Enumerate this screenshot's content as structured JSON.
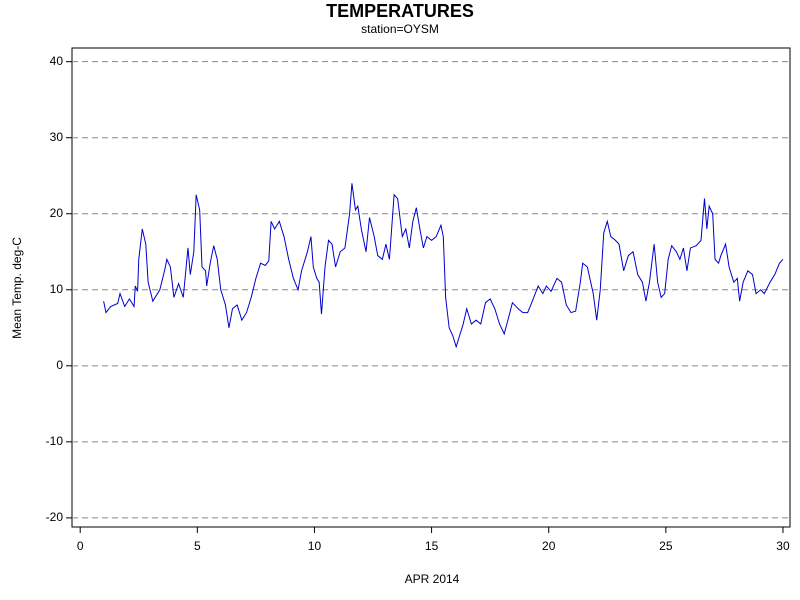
{
  "chart_data": {
    "type": "line",
    "title": "TEMPERATURES",
    "subtitle": "station=OYSM",
    "x_label": "APR 2014",
    "y_label": "Mean Temp. deg-C",
    "xlim": [
      -0.35,
      30.3
    ],
    "xticks": [
      0,
      5,
      10,
      15,
      20,
      25,
      30
    ],
    "ylim": [
      -21.2,
      41.8
    ],
    "yticks": [
      -20,
      -10,
      0,
      10,
      20,
      30,
      40
    ],
    "ygrid": true,
    "x": [
      1.0,
      1.1,
      1.3,
      1.6,
      1.7,
      1.9,
      2.1,
      2.3,
      2.35,
      2.45,
      2.5,
      2.65,
      2.8,
      2.9,
      3.1,
      3.4,
      3.6,
      3.7,
      3.85,
      4.0,
      4.2,
      4.4,
      4.6,
      4.7,
      4.85,
      4.95,
      5.1,
      5.2,
      5.35,
      5.4,
      5.55,
      5.7,
      5.85,
      6.0,
      6.2,
      6.35,
      6.5,
      6.7,
      6.9,
      7.1,
      7.3,
      7.5,
      7.7,
      7.9,
      8.05,
      8.15,
      8.3,
      8.5,
      8.7,
      8.9,
      9.1,
      9.3,
      9.45,
      9.7,
      9.85,
      9.95,
      10.1,
      10.2,
      10.3,
      10.45,
      10.6,
      10.75,
      10.9,
      11.1,
      11.3,
      11.5,
      11.6,
      11.75,
      11.85,
      12.0,
      12.2,
      12.35,
      12.55,
      12.7,
      12.9,
      13.05,
      13.2,
      13.4,
      13.55,
      13.75,
      13.9,
      14.05,
      14.2,
      14.35,
      14.5,
      14.65,
      14.8,
      15.0,
      15.2,
      15.4,
      15.5,
      15.6,
      15.75,
      15.9,
      16.05,
      16.2,
      16.35,
      16.5,
      16.7,
      16.9,
      17.1,
      17.3,
      17.5,
      17.7,
      17.9,
      18.1,
      18.3,
      18.45,
      18.7,
      18.9,
      19.1,
      19.3,
      19.55,
      19.75,
      19.9,
      20.1,
      20.35,
      20.55,
      20.75,
      20.95,
      21.15,
      21.35,
      21.45,
      21.65,
      21.9,
      22.05,
      22.2,
      22.35,
      22.5,
      22.65,
      22.85,
      23.0,
      23.2,
      23.4,
      23.6,
      23.8,
      24.0,
      24.15,
      24.3,
      24.5,
      24.65,
      24.8,
      24.95,
      25.1,
      25.25,
      25.45,
      25.6,
      25.75,
      25.9,
      26.05,
      26.3,
      26.5,
      26.65,
      26.75,
      26.85,
      27.0,
      27.1,
      27.25,
      27.35,
      27.55,
      27.7,
      27.9,
      28.05,
      28.15,
      28.3,
      28.5,
      28.7,
      28.85,
      29.05,
      29.2,
      29.45,
      29.65,
      29.85,
      30.0
    ],
    "series": [
      {
        "name": "Mean Temp",
        "color": "#0000cc",
        "values": [
          8.5,
          7.0,
          7.8,
          8.2,
          9.5,
          7.8,
          8.8,
          7.8,
          10.5,
          9.8,
          14,
          18,
          16,
          11,
          8.5,
          10,
          12.5,
          14,
          13,
          9,
          10.8,
          9,
          15.5,
          12,
          15,
          22.5,
          20.5,
          13,
          12.5,
          10.5,
          13.5,
          15.8,
          14,
          10,
          8,
          5,
          7.5,
          8,
          6,
          7,
          9,
          11.5,
          13.5,
          13.2,
          13.8,
          19,
          18,
          19,
          17,
          14,
          11.5,
          10,
          12.5,
          15,
          17,
          13,
          11.5,
          11,
          6.8,
          13,
          16.5,
          16,
          13,
          15,
          15.5,
          20,
          24,
          20.5,
          21,
          18,
          15,
          19.5,
          17,
          14.5,
          14,
          16,
          14,
          22.5,
          22,
          17,
          18,
          15.5,
          19,
          20.8,
          18,
          15.5,
          17,
          16.5,
          17,
          18.5,
          17,
          9,
          5,
          4,
          2.5,
          4,
          5.5,
          7.5,
          5.5,
          6,
          5.5,
          8.3,
          8.8,
          7.5,
          5.5,
          4.2,
          6.5,
          8.3,
          7.5,
          7,
          7,
          8.5,
          10.5,
          9.5,
          10.5,
          9.8,
          11.5,
          11,
          8,
          7,
          7.2,
          11,
          13.5,
          13,
          9.5,
          6,
          10,
          17.5,
          19,
          17,
          16.5,
          16,
          12.5,
          14.5,
          15,
          12,
          11,
          8.5,
          11,
          16,
          11,
          9,
          9.5,
          14,
          15.8,
          15,
          14,
          15.5,
          12.5,
          15.5,
          15.8,
          16.5,
          22,
          18,
          21,
          20,
          14,
          13.5,
          14.5,
          16,
          13,
          11,
          11.5,
          8.5,
          11,
          12.5,
          12,
          9.5,
          10,
          9.5,
          11,
          12,
          13.5,
          14
        ]
      }
    ]
  }
}
